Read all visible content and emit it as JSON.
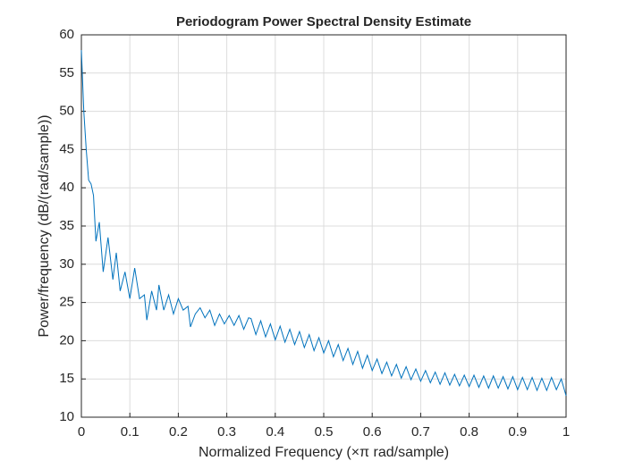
{
  "chart_data": {
    "type": "line",
    "title": "Periodogram Power Spectral Density Estimate",
    "xlabel": "Normalized Frequency  (×π rad/sample)",
    "ylabel": "Power/frequency (dB/(rad/sample))",
    "color": "#0072bd",
    "grid": true,
    "xlim": [
      0,
      1
    ],
    "ylim": [
      10,
      60
    ],
    "xticks": [
      0,
      0.1,
      0.2,
      0.3,
      0.4,
      0.5,
      0.6,
      0.7,
      0.8,
      0.9,
      1
    ],
    "yticks": [
      10,
      15,
      20,
      25,
      30,
      35,
      40,
      45,
      50,
      55,
      60
    ],
    "x": [
      0,
      0.005,
      0.01,
      0.015,
      0.02,
      0.025,
      0.03,
      0.037,
      0.045,
      0.055,
      0.065,
      0.072,
      0.08,
      0.09,
      0.1,
      0.11,
      0.12,
      0.13,
      0.135,
      0.145,
      0.155,
      0.16,
      0.17,
      0.18,
      0.19,
      0.2,
      0.21,
      0.22,
      0.225,
      0.235,
      0.245,
      0.255,
      0.265,
      0.275,
      0.285,
      0.295,
      0.305,
      0.315,
      0.325,
      0.335,
      0.345,
      0.35,
      0.36,
      0.37,
      0.38,
      0.39,
      0.4,
      0.41,
      0.42,
      0.43,
      0.44,
      0.45,
      0.46,
      0.47,
      0.48,
      0.49,
      0.5,
      0.51,
      0.52,
      0.53,
      0.54,
      0.55,
      0.56,
      0.57,
      0.58,
      0.59,
      0.6,
      0.61,
      0.62,
      0.63,
      0.64,
      0.65,
      0.66,
      0.67,
      0.68,
      0.69,
      0.7,
      0.71,
      0.72,
      0.73,
      0.74,
      0.75,
      0.76,
      0.77,
      0.78,
      0.79,
      0.8,
      0.81,
      0.82,
      0.83,
      0.84,
      0.85,
      0.86,
      0.87,
      0.88,
      0.89,
      0.9,
      0.91,
      0.92,
      0.93,
      0.94,
      0.95,
      0.96,
      0.97,
      0.98,
      0.99,
      1
    ],
    "values": [
      58,
      50,
      45,
      41,
      40.5,
      39,
      33,
      35.5,
      29,
      33.5,
      28,
      31.5,
      26.5,
      29,
      25.5,
      29.5,
      25.5,
      26,
      22.7,
      26.5,
      24,
      27.3,
      24,
      26,
      23.5,
      25.5,
      24,
      24.5,
      21.8,
      23.5,
      24.3,
      23,
      24,
      22,
      23.5,
      22.2,
      23.3,
      22,
      23.3,
      21.5,
      23,
      22.9,
      20.8,
      22.6,
      20.5,
      22.2,
      20.1,
      21.9,
      19.8,
      21.5,
      19.5,
      21.2,
      19.1,
      20.8,
      18.7,
      20.4,
      18.4,
      20.0,
      17.9,
      19.5,
      17.4,
      19.0,
      16.9,
      18.6,
      16.4,
      18.1,
      16.1,
      17.6,
      15.7,
      17.2,
      15.4,
      16.9,
      15.1,
      16.6,
      14.9,
      16.3,
      14.7,
      16.1,
      14.5,
      15.9,
      14.3,
      15.8,
      14.2,
      15.6,
      14.1,
      15.5,
      14.0,
      15.5,
      13.9,
      15.4,
      13.8,
      15.4,
      13.8,
      15.3,
      13.7,
      15.3,
      13.6,
      15.2,
      13.6,
      15.2,
      13.5,
      15.1,
      13.5,
      15.2,
      13.6,
      15.0,
      12.8
    ]
  }
}
